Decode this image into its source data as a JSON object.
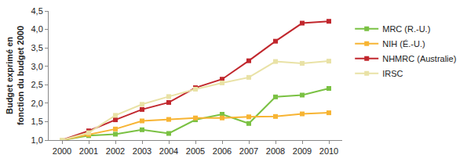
{
  "chart_data": {
    "type": "line",
    "y_label": "Budget exprimé en fonction du budget 2000",
    "x": [
      2000,
      2001,
      2002,
      2003,
      2004,
      2005,
      2006,
      2007,
      2008,
      2009,
      2010
    ],
    "series": [
      {
        "name": "MRC (R.-U.)",
        "color": "#7ac143",
        "values": [
          1.0,
          1.12,
          1.16,
          1.28,
          1.18,
          1.55,
          1.7,
          1.45,
          2.17,
          2.22,
          2.4
        ]
      },
      {
        "name": "NIH (É.-U.)",
        "color": "#f7b433",
        "values": [
          1.0,
          1.15,
          1.3,
          1.52,
          1.56,
          1.6,
          1.6,
          1.63,
          1.64,
          1.71,
          1.74
        ]
      },
      {
        "name": "NHMRC (Australie)",
        "color": "#c1272d",
        "values": [
          1.0,
          1.25,
          1.55,
          1.83,
          2.02,
          2.42,
          2.65,
          3.15,
          3.68,
          4.17,
          4.22
        ]
      },
      {
        "name": "IRSC",
        "color": "#e9e2a6",
        "values": [
          1.0,
          1.2,
          1.67,
          1.97,
          2.18,
          2.38,
          2.55,
          2.7,
          3.13,
          3.08,
          3.14
        ]
      }
    ],
    "xlim": [
      1999.5,
      2010.5
    ],
    "xticks": [
      2000,
      2001,
      2002,
      2003,
      2004,
      2005,
      2006,
      2007,
      2008,
      2009,
      2010
    ],
    "ylim": [
      1.0,
      4.5
    ],
    "yticks": [
      {
        "value": 1.0,
        "label": "1,0"
      },
      {
        "value": 1.5,
        "label": "1,5"
      },
      {
        "value": 2.0,
        "label": "2,0"
      },
      {
        "value": 2.5,
        "label": "2,5"
      },
      {
        "value": 3.0,
        "label": "3,0"
      },
      {
        "value": 3.5,
        "label": "3,5"
      },
      {
        "value": 4.0,
        "label": "4,0"
      },
      {
        "value": 4.5,
        "label": "4,5"
      }
    ],
    "grid": false,
    "legend": "right",
    "marker": "square",
    "line_style": "solid"
  }
}
